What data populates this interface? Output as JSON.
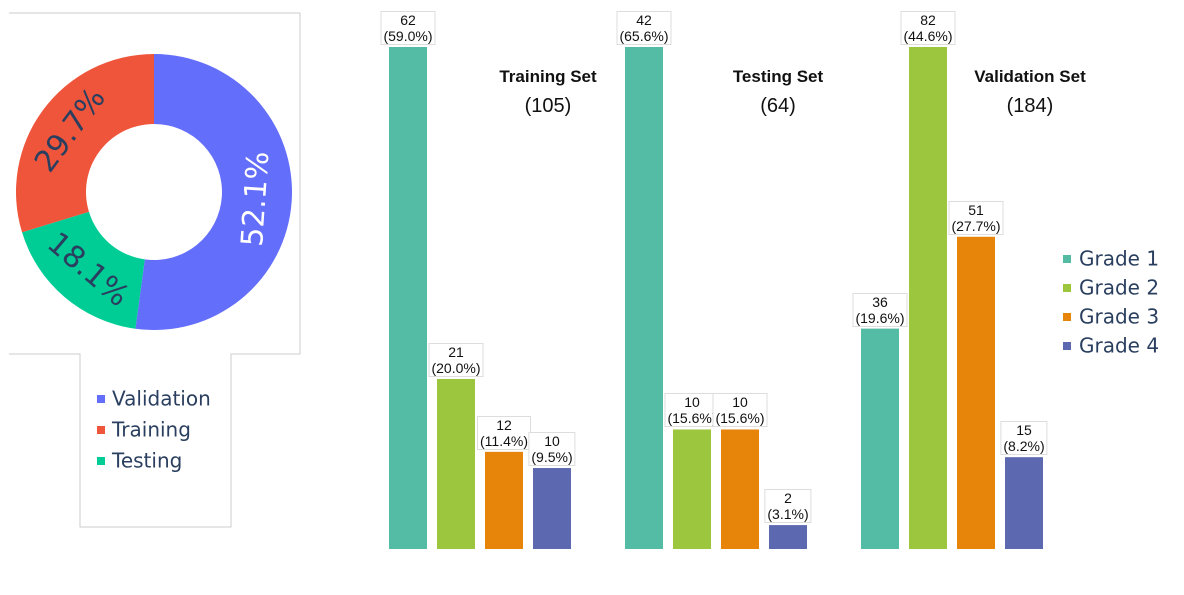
{
  "chart_data": [
    {
      "type": "pie",
      "categories": [
        "Validation",
        "Training",
        "Testing"
      ],
      "values": [
        52.1,
        29.7,
        18.1
      ],
      "value_labels": [
        "52.1%",
        "29.7%",
        "18.1%"
      ],
      "colors": [
        "#636efa",
        "#ef553b",
        "#00cc96"
      ],
      "label_colors": [
        "#ffffff",
        "#2a3f5f",
        "#2a3f5f"
      ],
      "hole": true
    },
    {
      "type": "bar",
      "groups": [
        {
          "title": "Training Set",
          "subtitle": "(105)",
          "ylim": [
            0,
            62
          ]
        },
        {
          "title": "Testing Set",
          "subtitle": "(64)",
          "ylim": [
            0,
            42
          ]
        },
        {
          "title": "Validation Set",
          "subtitle": "(184)",
          "ylim": [
            0,
            82
          ]
        }
      ],
      "series": [
        {
          "name": "Grade 1",
          "color": "#54bca4",
          "values": [
            62,
            42,
            36
          ],
          "value_labels": [
            "62\n(59.0%)",
            "42\n(65.6%)",
            "36\n(19.6%)"
          ]
        },
        {
          "name": "Grade 2",
          "color": "#9dc63f",
          "values": [
            21,
            10,
            82
          ],
          "value_labels": [
            "21\n(20.0%)",
            "10\n(15.6%)",
            "82\n(44.6%)"
          ]
        },
        {
          "name": "Grade 3",
          "color": "#e6850a",
          "values": [
            12,
            10,
            51
          ],
          "value_labels": [
            "12\n(11.4%)",
            "10\n(15.6%)",
            "51\n(27.7%)"
          ]
        },
        {
          "name": "Grade 4",
          "color": "#5c68b0",
          "values": [
            10,
            2,
            15
          ],
          "value_labels": [
            "10\n(9.5%)",
            "2\n(3.1%)",
            "15\n(8.2%)"
          ]
        }
      ]
    }
  ]
}
